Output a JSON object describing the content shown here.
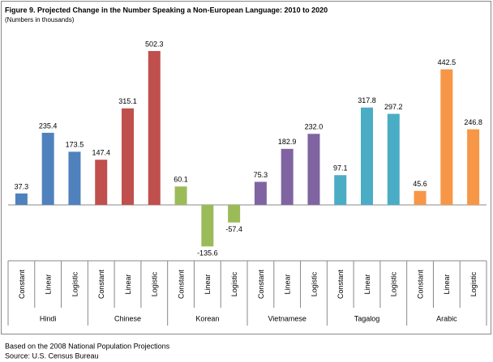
{
  "chart_data": {
    "type": "bar",
    "title": "Figure 9.  Projected Change in the Number Speaking a Non-European Language:  2010 to 2020",
    "subtitle": "(Numbers in thousands)",
    "categories": [
      "Constant",
      "Linear",
      "Logistic"
    ],
    "series": [
      {
        "name": "Hindi",
        "color": "#4f81bd",
        "values": [
          37.3,
          235.4,
          173.5
        ]
      },
      {
        "name": "Chinese",
        "color": "#c0504d",
        "values": [
          147.4,
          315.1,
          502.3
        ]
      },
      {
        "name": "Korean",
        "color": "#9bbb59",
        "values": [
          60.1,
          -135.6,
          -57.4
        ]
      },
      {
        "name": "Vietnamese",
        "color": "#8064a2",
        "values": [
          75.3,
          182.9,
          232.0
        ],
        "value_labels": [
          "75.3",
          "182.9",
          "232.0"
        ]
      },
      {
        "name": "Tagalog",
        "color": "#4bacc6",
        "values": [
          97.1,
          317.8,
          297.2
        ]
      },
      {
        "name": "Arabic",
        "color": "#f79646",
        "values": [
          45.6,
          442.5,
          246.8
        ]
      }
    ],
    "notes": [
      "Based on the 2008 National Population Projections",
      "Source:  U.S. Census Bureau"
    ]
  }
}
